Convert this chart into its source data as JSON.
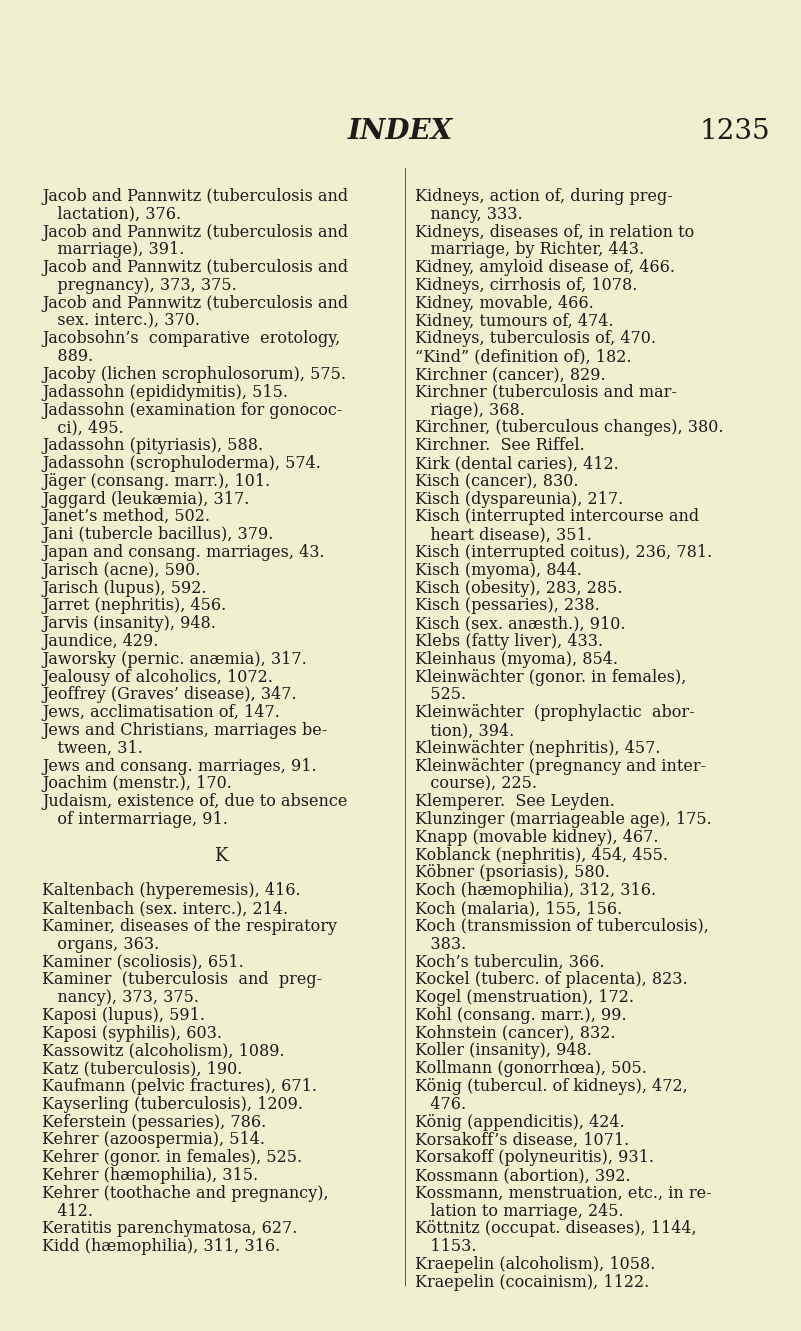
{
  "background_color": "#f0efcf",
  "title": "INDEX",
  "page_number": "1235",
  "title_fontsize": 20,
  "page_fontsize": 20,
  "text_fontsize": 11.5,
  "k_fontsize": 13,
  "left_column": [
    [
      "Jacob and Pannwitz (tuberculosis and",
      false
    ],
    [
      "   lactation), 376.",
      false
    ],
    [
      "Jacob and Pannwitz (tuberculosis and",
      false
    ],
    [
      "   marriage), 391.",
      false
    ],
    [
      "Jacob and Pannwitz (tuberculosis and",
      false
    ],
    [
      "   pregnancy), 373, 375.",
      false
    ],
    [
      "Jacob and Pannwitz (tuberculosis and",
      false
    ],
    [
      "   sex. interc.), 370.",
      false
    ],
    [
      "Jacobsohn’s  comparative  erotology,",
      false
    ],
    [
      "   889.",
      false
    ],
    [
      "Jacoby (lichen scrophulosorum), 575.",
      false
    ],
    [
      "Jadassohn (epididymitis), 515.",
      false
    ],
    [
      "Jadassohn (examination for gonococ-",
      false
    ],
    [
      "   ci), 495.",
      false
    ],
    [
      "Jadassohn (pityriasis), 588.",
      false
    ],
    [
      "Jadassohn (scrophuloderma), 574.",
      false
    ],
    [
      "Jäger (consang. marr.), 101.",
      false
    ],
    [
      "Jaggard (leukæmia), 317.",
      false
    ],
    [
      "Janet’s method, 502.",
      false
    ],
    [
      "Jani (tubercle bacillus), 379.",
      false
    ],
    [
      "Japan and consang. marriages, 43.",
      false
    ],
    [
      "Jarisch (acne), 590.",
      false
    ],
    [
      "Jarisch (lupus), 592.",
      false
    ],
    [
      "Jarret (nephritis), 456.",
      false
    ],
    [
      "Jarvis (insanity), 948.",
      false
    ],
    [
      "Jaundice, 429.",
      false
    ],
    [
      "Jaworsky (pernic. anæmia), 317.",
      false
    ],
    [
      "Jealousy of alcoholics, 1072.",
      false
    ],
    [
      "Jeoffrey (Graves’ disease), 347.",
      false
    ],
    [
      "Jews, acclimatisation of, 147.",
      false
    ],
    [
      "Jews and Christians, marriages be-",
      false
    ],
    [
      "   tween, 31.",
      false
    ],
    [
      "Jews and consang. marriages, 91.",
      false
    ],
    [
      "Joachim (menstr.), 170.",
      false
    ],
    [
      "Judaism, existence of, due to absence",
      false
    ],
    [
      "   of intermarriage, 91.",
      false
    ],
    [
      "",
      false
    ],
    [
      "K",
      true
    ],
    [
      "",
      false
    ],
    [
      "Kaltenbach (hyperemesis), 416.",
      false
    ],
    [
      "Kaltenbach (sex. interc.), 214.",
      false
    ],
    [
      "Kaminer, diseases of the respiratory",
      false
    ],
    [
      "   organs, 363.",
      false
    ],
    [
      "Kaminer (scoliosis), 651.",
      false
    ],
    [
      "Kaminer  (tuberculosis  and  preg-",
      false
    ],
    [
      "   nancy), 373, 375.",
      false
    ],
    [
      "Kaposi (lupus), 591.",
      false
    ],
    [
      "Kaposi (syphilis), 603.",
      false
    ],
    [
      "Kassowitz (alcoholism), 1089.",
      false
    ],
    [
      "Katz (tuberculosis), 190.",
      false
    ],
    [
      "Kaufmann (pelvic fractures), 671.",
      false
    ],
    [
      "Kayserling (tuberculosis), 1209.",
      false
    ],
    [
      "Keferstein (pessaries), 786.",
      false
    ],
    [
      "Kehrer (azoospermia), 514.",
      false
    ],
    [
      "Kehrer (gonor. in females), 525.",
      false
    ],
    [
      "Kehrer (hæmophilia), 315.",
      false
    ],
    [
      "Kehrer (toothache and pregnancy),",
      false
    ],
    [
      "   412.",
      false
    ],
    [
      "Keratitis parenchymatosa, 627.",
      false
    ],
    [
      "Kidd (hæmophilia), 311, 316.",
      false
    ]
  ],
  "right_column": [
    "Kidneys, action of, during preg-",
    "   nancy, 333.",
    "Kidneys, diseases of, in relation to",
    "   marriage, by Richter, 443.",
    "Kidney, amyloid disease of, 466.",
    "Kidneys, cirrhosis of, 1078.",
    "Kidney, movable, 466.",
    "Kidney, tumours of, 474.",
    "Kidneys, tuberculosis of, 470.",
    "“Kind” (definition of), 182.",
    "Kirchner (cancer), 829.",
    "Kirchner (tuberculosis and mar-",
    "   riage), 368.",
    "Kirchner, (tuberculous changes), 380.",
    "Kirchner.  See Riffel.",
    "Kirk (dental caries), 412.",
    "Kisch (cancer), 830.",
    "Kisch (dyspareunia), 217.",
    "Kisch (interrupted intercourse and",
    "   heart disease), 351.",
    "Kisch (interrupted coitus), 236, 781.",
    "Kisch (myoma), 844.",
    "Kisch (obesity), 283, 285.",
    "Kisch (pessaries), 238.",
    "Kisch (sex. anæsth.), 910.",
    "Klebs (fatty liver), 433.",
    "Kleinhaus (myoma), 854.",
    "Kleinwächter (gonor. in females),",
    "   525.",
    "Kleinwächter  (prophylactic  abor-",
    "   tion), 394.",
    "Kleinwächter (nephritis), 457.",
    "Kleinwächter (pregnancy and inter-",
    "   course), 225.",
    "Klemperer.  See Leyden.",
    "Klunzinger (marriageable age), 175.",
    "Knapp (movable kidney), 467.",
    "Koblanck (nephritis), 454, 455.",
    "Köbner (psoriasis), 580.",
    "Koch (hæmophilia), 312, 316.",
    "Koch (malaria), 155, 156.",
    "Koch (transmission of tuberculosis),",
    "   383.",
    "Koch’s tuberculin, 366.",
    "Kockel (tuberc. of placenta), 823.",
    "Kogel (menstruation), 172.",
    "Kohl (consang. marr.), 99.",
    "Kohnstein (cancer), 832.",
    "Koller (insanity), 948.",
    "Kollmann (gonorrhœa), 505.",
    "König (tubercul. of kidneys), 472,",
    "   476.",
    "König (appendicitis), 424.",
    "Korsakoff’s disease, 1071.",
    "Korsakoff (polyneuritis), 931.",
    "Kossmann (abortion), 392.",
    "Kossmann, menstruation, etc., in re-",
    "   lation to marriage, 245.",
    "Köttnitz (occupat. diseases), 1144,",
    "   1153.",
    "Kraepelin (alcoholism), 1058.",
    "Kraepelin (cocainism), 1122."
  ]
}
